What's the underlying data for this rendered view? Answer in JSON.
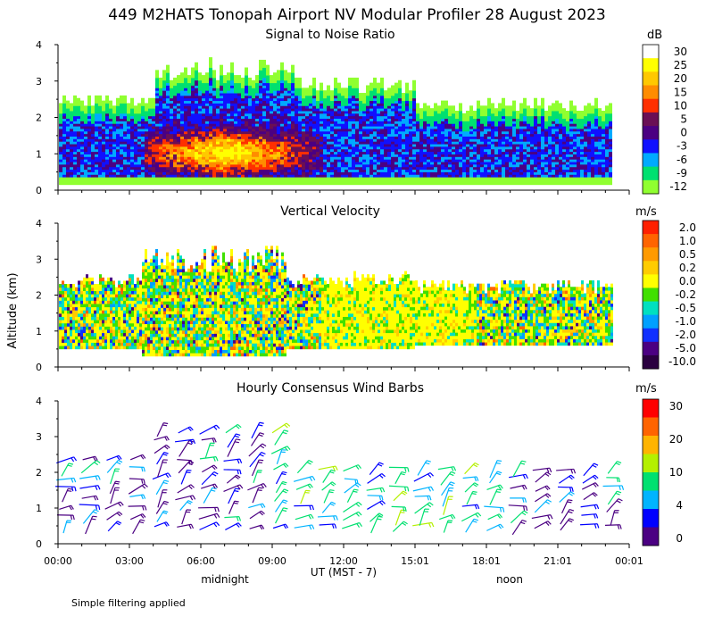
{
  "figure_title": "449 M2HATS Tonopah Airport NV Modular Profiler 28 August 2023",
  "y_axis_label": "Altitude (km)",
  "x_axis_label": "UT  (MST - 7)",
  "midnight_label": "midnight",
  "noon_label": "noon",
  "footer_note": "Simple filtering applied",
  "x_tick_labels": [
    "00:00",
    "03:00",
    "06:00",
    "09:00",
    "12:00",
    "15:01",
    "18:01",
    "21:01",
    "00:01"
  ],
  "y_tick_labels": [
    "0",
    "1",
    "2",
    "3",
    "4"
  ],
  "chart_data": [
    {
      "type": "heatmap",
      "title": "Signal to Noise Ratio",
      "unit": "dB",
      "ylim": [
        0,
        4
      ],
      "colorbar_labels": [
        "30",
        "25",
        "20",
        "15",
        "10",
        "5",
        "0",
        "-3",
        "-6",
        "-9",
        "-12"
      ],
      "colorbar_colors": [
        "#ffffff",
        "#ffff00",
        "#ffc800",
        "#ff8c00",
        "#ff3000",
        "#6a0f55",
        "#4b0082",
        "#1010ff",
        "#00aaff",
        "#00e070",
        "#90ff30"
      ]
    },
    {
      "type": "heatmap",
      "title": "Vertical Velocity",
      "unit": "m/s",
      "ylim": [
        0,
        4
      ],
      "colorbar_labels": [
        "2.0",
        "1.0",
        "0.5",
        "0.2",
        "0.0",
        "-0.2",
        "-0.5",
        "-1.0",
        "-2.0",
        "-5.0",
        "-10.0"
      ],
      "colorbar_colors": [
        "#ff2000",
        "#ff6400",
        "#ff9a00",
        "#ffcc00",
        "#ffff00",
        "#40e000",
        "#00e0c0",
        "#00a0ff",
        "#1030ff",
        "#4b0082",
        "#2a0040"
      ]
    },
    {
      "type": "scatter",
      "title": "Hourly Consensus Wind Barbs",
      "unit": "m/s",
      "ylim": [
        0,
        4
      ],
      "colorbar_labels": [
        "30",
        "20",
        "10",
        "4",
        "0"
      ],
      "colorbar_colors": [
        "#ff0000",
        "#ff6400",
        "#ffb400",
        "#b4f000",
        "#00e070",
        "#00b4ff",
        "#0000ff",
        "#4b0082"
      ]
    }
  ]
}
